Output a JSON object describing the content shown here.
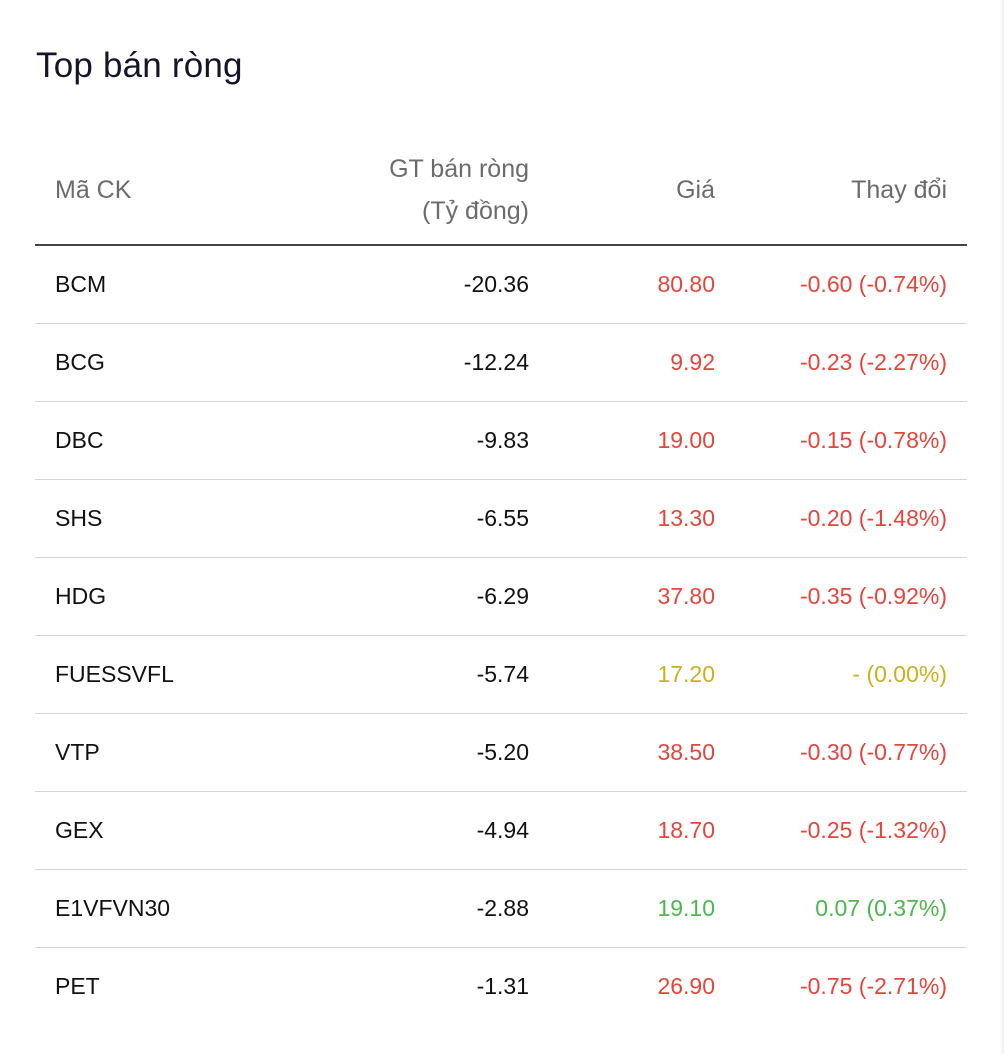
{
  "title": "Top bán ròng",
  "table": {
    "headers": {
      "symbol": "Mã CK",
      "value_line1": "GT bán ròng",
      "value_line2": "(Tỷ đồng)",
      "price": "Giá",
      "change": "Thay đổi"
    },
    "rows": [
      {
        "symbol": "BCM",
        "value": "-20.36",
        "price": "80.80",
        "change": "-0.60 (-0.74%)",
        "direction": "down"
      },
      {
        "symbol": "BCG",
        "value": "-12.24",
        "price": "9.92",
        "change": "-0.23 (-2.27%)",
        "direction": "down"
      },
      {
        "symbol": "DBC",
        "value": "-9.83",
        "price": "19.00",
        "change": "-0.15 (-0.78%)",
        "direction": "down"
      },
      {
        "symbol": "SHS",
        "value": "-6.55",
        "price": "13.30",
        "change": "-0.20 (-1.48%)",
        "direction": "down"
      },
      {
        "symbol": "HDG",
        "value": "-6.29",
        "price": "37.80",
        "change": "-0.35 (-0.92%)",
        "direction": "down"
      },
      {
        "symbol": "FUESSVFL",
        "value": "-5.74",
        "price": "17.20",
        "change": "- (0.00%)",
        "direction": "flat"
      },
      {
        "symbol": "VTP",
        "value": "-5.20",
        "price": "38.50",
        "change": "-0.30 (-0.77%)",
        "direction": "down"
      },
      {
        "symbol": "GEX",
        "value": "-4.94",
        "price": "18.70",
        "change": "-0.25 (-1.32%)",
        "direction": "down"
      },
      {
        "symbol": "E1VFVN30",
        "value": "-2.88",
        "price": "19.10",
        "change": "0.07 (0.37%)",
        "direction": "up"
      },
      {
        "symbol": "PET",
        "value": "-1.31",
        "price": "26.90",
        "change": "-0.75 (-2.71%)",
        "direction": "down"
      }
    ]
  },
  "colors": {
    "down": "#e5453b",
    "flat": "#c9b21e",
    "up": "#4cb84c"
  }
}
